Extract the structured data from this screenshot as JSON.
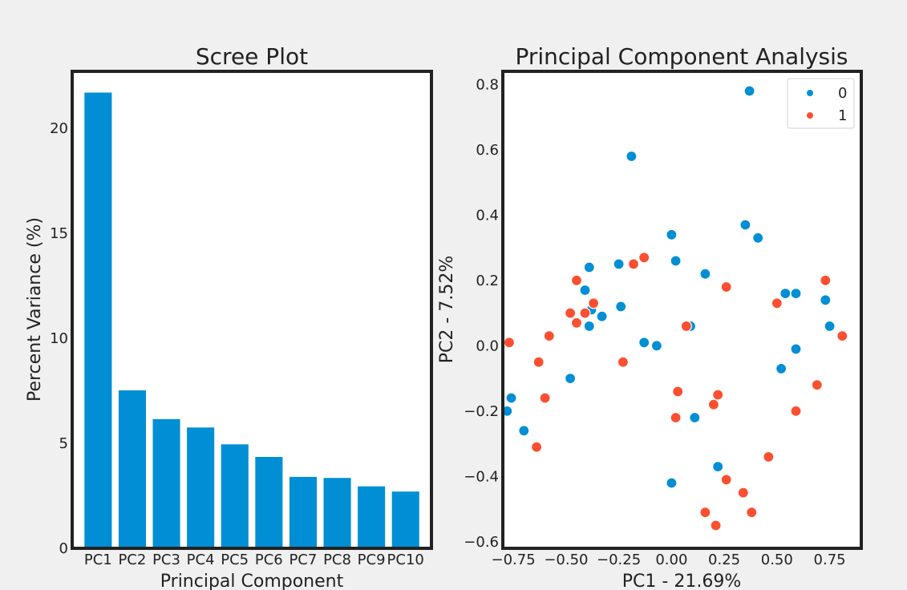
{
  "chart_data": [
    {
      "type": "bar",
      "title": "Scree Plot",
      "xlabel": "Principal Component",
      "ylabel": "Percent Variance (%)",
      "categories": [
        "PC1",
        "PC2",
        "PC3",
        "PC4",
        "PC5",
        "PC6",
        "PC7",
        "PC8",
        "PC9",
        "PC10"
      ],
      "values": [
        21.69,
        7.52,
        6.15,
        5.75,
        4.95,
        4.35,
        3.4,
        3.35,
        2.95,
        2.7
      ],
      "ylim": [
        0,
        22.7
      ],
      "yticks": [
        0,
        5,
        10,
        15,
        20
      ],
      "grid": false,
      "colors": {
        "bar": "#008fd5"
      }
    },
    {
      "type": "scatter",
      "title": "Principal Component Analysis",
      "xlabel": "PC1 - 21.69%",
      "ylabel": "PC2 - 7.52%",
      "xlim": [
        -0.8,
        0.9
      ],
      "ylim": [
        -0.62,
        0.84
      ],
      "xticks": [
        -0.75,
        -0.5,
        -0.25,
        0.0,
        0.25,
        0.5,
        0.75
      ],
      "xtick_labels": [
        "−0.75",
        "−0.50",
        "−0.25",
        "0.00",
        "0.25",
        "0.50",
        "0.75"
      ],
      "yticks": [
        -0.6,
        -0.4,
        -0.2,
        0.0,
        0.2,
        0.4,
        0.6,
        0.8
      ],
      "ytick_labels": [
        "−0.6",
        "−0.4",
        "−0.2",
        "0.0",
        "0.2",
        "0.4",
        "0.6",
        "0.8"
      ],
      "legend_position": "top-right",
      "grid": false,
      "series": [
        {
          "name": "0",
          "color": "#008fd5",
          "points": [
            [
              0.37,
              0.78
            ],
            [
              -0.19,
              0.58
            ],
            [
              0.35,
              0.37
            ],
            [
              0.41,
              0.33
            ],
            [
              0.0,
              0.34
            ],
            [
              0.02,
              0.26
            ],
            [
              -0.25,
              0.25
            ],
            [
              -0.39,
              0.24
            ],
            [
              0.16,
              0.22
            ],
            [
              -0.41,
              0.17
            ],
            [
              0.54,
              0.16
            ],
            [
              0.59,
              0.16
            ],
            [
              0.73,
              0.14
            ],
            [
              -0.24,
              0.12
            ],
            [
              -0.38,
              0.11
            ],
            [
              -0.33,
              0.09
            ],
            [
              0.09,
              0.06
            ],
            [
              -0.39,
              0.06
            ],
            [
              0.75,
              0.06
            ],
            [
              -0.13,
              0.01
            ],
            [
              -0.07,
              0.0
            ],
            [
              0.59,
              -0.01
            ],
            [
              0.52,
              -0.07
            ],
            [
              -0.48,
              -0.1
            ],
            [
              -0.76,
              -0.16
            ],
            [
              -0.78,
              -0.2
            ],
            [
              0.11,
              -0.22
            ],
            [
              -0.7,
              -0.26
            ],
            [
              0.22,
              -0.37
            ],
            [
              0.0,
              -0.42
            ]
          ]
        },
        {
          "name": "1",
          "color": "#fc4f30",
          "points": [
            [
              -0.13,
              0.27
            ],
            [
              -0.18,
              0.25
            ],
            [
              -0.45,
              0.2
            ],
            [
              0.73,
              0.2
            ],
            [
              0.26,
              0.18
            ],
            [
              0.5,
              0.13
            ],
            [
              -0.37,
              0.13
            ],
            [
              -0.48,
              0.1
            ],
            [
              -0.41,
              0.1
            ],
            [
              -0.45,
              0.07
            ],
            [
              0.07,
              0.06
            ],
            [
              -0.58,
              0.03
            ],
            [
              0.81,
              0.03
            ],
            [
              -0.77,
              0.01
            ],
            [
              -0.63,
              -0.05
            ],
            [
              -0.23,
              -0.05
            ],
            [
              0.69,
              -0.12
            ],
            [
              0.03,
              -0.14
            ],
            [
              -0.6,
              -0.16
            ],
            [
              0.22,
              -0.15
            ],
            [
              0.2,
              -0.18
            ],
            [
              0.59,
              -0.2
            ],
            [
              0.02,
              -0.22
            ],
            [
              -0.64,
              -0.31
            ],
            [
              0.46,
              -0.34
            ],
            [
              0.26,
              -0.41
            ],
            [
              0.34,
              -0.45
            ],
            [
              0.16,
              -0.51
            ],
            [
              0.38,
              -0.51
            ],
            [
              0.21,
              -0.55
            ]
          ]
        }
      ]
    }
  ]
}
